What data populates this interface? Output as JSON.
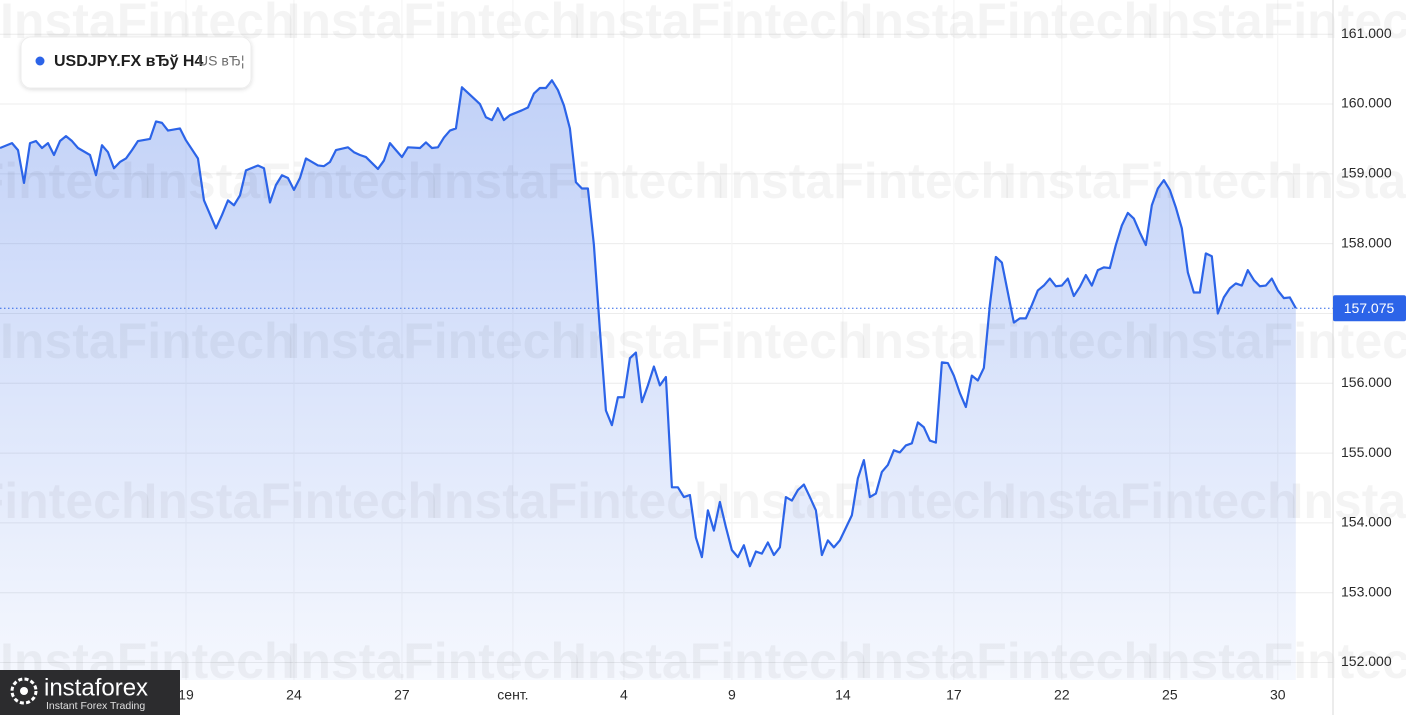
{
  "chart_data": {
    "type": "line",
    "series": [
      {
        "name": "USDJPY.FX вЂў H4",
        "color": "#2c64e8",
        "x": [
          0,
          2,
          3,
          4,
          5,
          6,
          7,
          8,
          9,
          10,
          11,
          12,
          13,
          15,
          16,
          17,
          18,
          19,
          20,
          21,
          22,
          23,
          25,
          26,
          27,
          28,
          30,
          31,
          33,
          34,
          36,
          37,
          38,
          39,
          40,
          41,
          43,
          44,
          45,
          46,
          47,
          48,
          49,
          50,
          51,
          53,
          54,
          55,
          56,
          58,
          59,
          60,
          61,
          63,
          64,
          65,
          66,
          67,
          68,
          70,
          71,
          72,
          73,
          74,
          75,
          76,
          77,
          79,
          80,
          81,
          82,
          83,
          84,
          85,
          87,
          88,
          89,
          90,
          91,
          92,
          93,
          94,
          95,
          96,
          97,
          98,
          99,
          100,
          101,
          102,
          103,
          104,
          105,
          106,
          107,
          108,
          109,
          110,
          111,
          112,
          113,
          114,
          115,
          116,
          117,
          118,
          119,
          120,
          121,
          122,
          123,
          124,
          125,
          126,
          127,
          128,
          129,
          130,
          131,
          132,
          133,
          134,
          135,
          136,
          137,
          138,
          139,
          140,
          142,
          143,
          144,
          145,
          146,
          147,
          148,
          149,
          150,
          151,
          152,
          153,
          154,
          155,
          156,
          157,
          158,
          159,
          160,
          161,
          162,
          163,
          164,
          165,
          166,
          167,
          169,
          170,
          171,
          172,
          173,
          174,
          175,
          176,
          177,
          178,
          179,
          180,
          181,
          182,
          183,
          184,
          185,
          186,
          187,
          188,
          189,
          190,
          191,
          192,
          193,
          194,
          195,
          196,
          197,
          198,
          199,
          200,
          201,
          202,
          203,
          204,
          205,
          206,
          207,
          208,
          209,
          210,
          211,
          212,
          213,
          214,
          215,
          216
        ],
        "values": [
          159.37,
          159.44,
          159.34,
          158.87,
          159.44,
          159.47,
          159.37,
          159.44,
          159.27,
          159.47,
          159.54,
          159.47,
          159.37,
          159.27,
          158.98,
          159.41,
          159.31,
          159.08,
          159.17,
          159.22,
          159.34,
          159.47,
          159.5,
          159.75,
          159.73,
          159.62,
          159.65,
          159.48,
          159.22,
          158.62,
          158.22,
          158.41,
          158.62,
          158.55,
          158.69,
          159.05,
          159.12,
          159.08,
          158.59,
          158.84,
          158.98,
          158.94,
          158.77,
          158.94,
          159.22,
          159.12,
          159.11,
          159.17,
          159.34,
          159.38,
          159.31,
          159.27,
          159.24,
          159.07,
          159.19,
          159.44,
          159.34,
          159.24,
          159.38,
          159.37,
          159.45,
          159.37,
          159.38,
          159.52,
          159.62,
          159.65,
          160.24,
          160.08,
          160.0,
          159.81,
          159.77,
          159.94,
          159.77,
          159.84,
          159.91,
          159.95,
          160.15,
          160.23,
          160.23,
          160.34,
          160.2,
          159.98,
          159.65,
          158.88,
          158.79,
          158.79,
          157.98,
          156.76,
          155.61,
          155.4,
          155.8,
          155.8,
          156.36,
          156.44,
          155.73,
          155.97,
          156.24,
          155.97,
          156.09,
          154.51,
          154.51,
          154.37,
          154.4,
          153.79,
          153.51,
          154.18,
          153.89,
          154.3,
          153.94,
          153.61,
          153.51,
          153.68,
          153.38,
          153.59,
          153.56,
          153.72,
          153.54,
          153.65,
          154.37,
          154.32,
          154.47,
          154.55,
          154.37,
          154.18,
          153.54,
          153.75,
          153.65,
          153.75,
          154.11,
          154.64,
          154.9,
          154.37,
          154.42,
          154.73,
          154.83,
          155.04,
          155.01,
          155.11,
          155.14,
          155.44,
          155.37,
          155.18,
          155.15,
          156.3,
          156.29,
          156.11,
          155.86,
          155.66,
          156.11,
          156.04,
          156.22,
          157.12,
          157.81,
          157.73,
          156.87,
          156.93,
          156.93,
          157.12,
          157.33,
          157.4,
          157.5,
          157.39,
          157.4,
          157.5,
          157.25,
          157.38,
          157.55,
          157.4,
          157.62,
          157.66,
          157.65,
          157.98,
          158.26,
          158.44,
          158.36,
          158.16,
          157.98,
          158.55,
          158.79,
          158.91,
          158.77,
          158.52,
          158.22,
          157.59,
          157.3,
          157.3,
          157.86,
          157.82,
          157.0,
          157.23,
          157.36,
          157.43,
          157.4,
          157.62,
          157.48,
          157.39,
          157.4,
          157.5,
          157.33,
          157.22,
          157.23,
          157.075
        ]
      }
    ],
    "legend_note": "US вЂ¦",
    "xlim": [
      0,
      222.2
    ],
    "xticks": [
      {
        "value": 31,
        "label": "19"
      },
      {
        "value": 49,
        "label": "24"
      },
      {
        "value": 67,
        "label": "27"
      },
      {
        "value": 85.5,
        "label": "сент."
      },
      {
        "value": 104,
        "label": "4"
      },
      {
        "value": 122,
        "label": "9"
      },
      {
        "value": 140.5,
        "label": "14"
      },
      {
        "value": 159,
        "label": "17"
      },
      {
        "value": 177,
        "label": "22"
      },
      {
        "value": 195,
        "label": "25"
      },
      {
        "value": 213,
        "label": "30"
      }
    ],
    "ylim": [
      151.75,
      161.49
    ],
    "yticks": [
      {
        "value": 152,
        "label": "152.000"
      },
      {
        "value": 153,
        "label": "153.000"
      },
      {
        "value": 154,
        "label": "154.000"
      },
      {
        "value": 155,
        "label": "155.000"
      },
      {
        "value": 156,
        "label": "156.000"
      },
      {
        "value": 157,
        "label": "157.000"
      },
      {
        "value": 158,
        "label": "158.000"
      },
      {
        "value": 159,
        "label": "159.000"
      },
      {
        "value": 160,
        "label": "160.000"
      },
      {
        "value": 161,
        "label": "161.000"
      }
    ],
    "grid": true
  },
  "watermark": "InstaFintech",
  "logo": {
    "name": "instaforex",
    "tagline": "Instant Forex Trading"
  }
}
